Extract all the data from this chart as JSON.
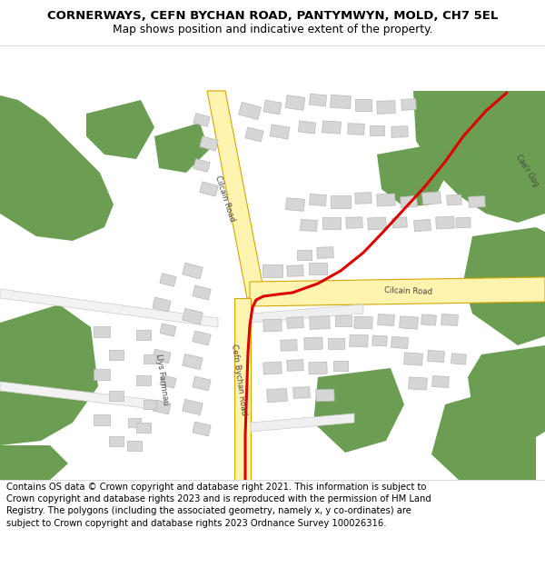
{
  "title_line1": "CORNERWAYS, CEFN BYCHAN ROAD, PANTYMWYN, MOLD, CH7 5EL",
  "title_line2": "Map shows position and indicative extent of the property.",
  "footer_text": "Contains OS data © Crown copyright and database right 2021. This information is subject to Crown copyright and database rights 2023 and is reproduced with the permission of HM Land Registry. The polygons (including the associated geometry, namely x, y co-ordinates) are subject to Crown copyright and database rights 2023 Ordnance Survey 100026316.",
  "map_bg": "#ffffff",
  "road_yellow_fill": "#fff3b0",
  "road_yellow_border": "#d4a800",
  "green_color": "#6b9e52",
  "building_color": "#d6d6d6",
  "building_edge": "#b8b8b8",
  "red_color": "#dd0000",
  "red_lw": 2.2,
  "title_fontsize": 9.5,
  "subtitle_fontsize": 8.8,
  "footer_fontsize": 7.2
}
